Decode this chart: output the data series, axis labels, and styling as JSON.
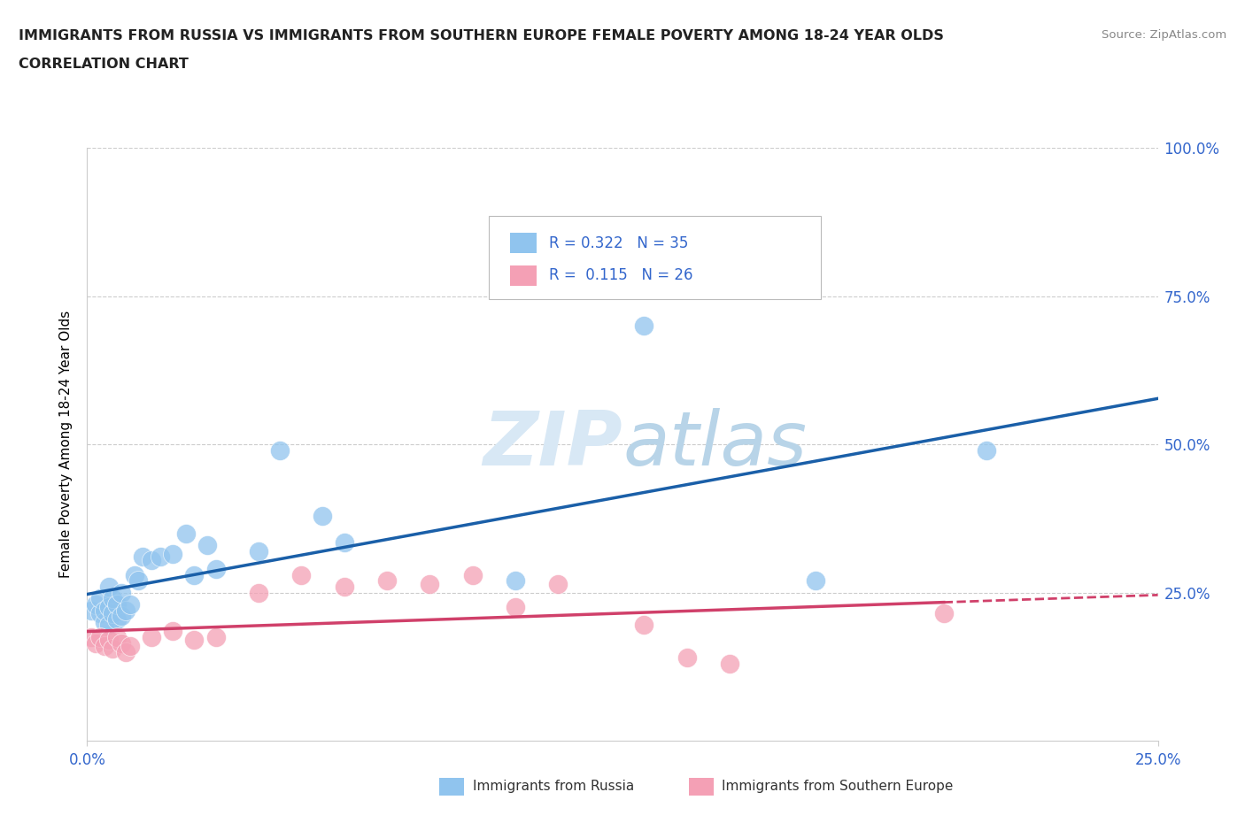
{
  "title_line1": "IMMIGRANTS FROM RUSSIA VS IMMIGRANTS FROM SOUTHERN EUROPE FEMALE POVERTY AMONG 18-24 YEAR OLDS",
  "title_line2": "CORRELATION CHART",
  "source_text": "Source: ZipAtlas.com",
  "ylabel": "Female Poverty Among 18-24 Year Olds",
  "xlim": [
    0.0,
    0.25
  ],
  "ylim": [
    0.0,
    1.0
  ],
  "ytick_positions": [
    0.25,
    0.5,
    0.75,
    1.0
  ],
  "ytick_labels": [
    "25.0%",
    "50.0%",
    "75.0%",
    "100.0%"
  ],
  "xtick_positions": [
    0.0,
    0.25
  ],
  "xtick_labels": [
    "0.0%",
    "25.0%"
  ],
  "color_russia": "#90C4EE",
  "color_south_europe": "#F4A0B5",
  "color_line_russia": "#1A5FA8",
  "color_line_se": "#D0406A",
  "watermark_zip": "ZIP",
  "watermark_atlas": "atlas",
  "background_color": "#FFFFFF",
  "grid_color": "#CCCCCC",
  "russia_x": [
    0.001,
    0.002,
    0.003,
    0.003,
    0.004,
    0.004,
    0.005,
    0.005,
    0.005,
    0.006,
    0.006,
    0.007,
    0.007,
    0.008,
    0.008,
    0.009,
    0.01,
    0.011,
    0.012,
    0.013,
    0.015,
    0.017,
    0.02,
    0.023,
    0.025,
    0.028,
    0.03,
    0.04,
    0.045,
    0.055,
    0.06,
    0.1,
    0.13,
    0.17,
    0.21
  ],
  "russia_y": [
    0.22,
    0.23,
    0.215,
    0.24,
    0.2,
    0.22,
    0.195,
    0.225,
    0.26,
    0.215,
    0.24,
    0.205,
    0.23,
    0.21,
    0.25,
    0.22,
    0.23,
    0.28,
    0.27,
    0.31,
    0.305,
    0.31,
    0.315,
    0.35,
    0.28,
    0.33,
    0.29,
    0.32,
    0.49,
    0.38,
    0.335,
    0.27,
    0.7,
    0.27,
    0.49
  ],
  "se_x": [
    0.001,
    0.002,
    0.003,
    0.004,
    0.005,
    0.006,
    0.007,
    0.008,
    0.009,
    0.01,
    0.015,
    0.02,
    0.025,
    0.03,
    0.04,
    0.05,
    0.06,
    0.07,
    0.08,
    0.09,
    0.1,
    0.11,
    0.13,
    0.14,
    0.15,
    0.2
  ],
  "se_y": [
    0.175,
    0.165,
    0.175,
    0.16,
    0.17,
    0.155,
    0.175,
    0.165,
    0.15,
    0.16,
    0.175,
    0.185,
    0.17,
    0.175,
    0.25,
    0.28,
    0.26,
    0.27,
    0.265,
    0.28,
    0.225,
    0.265,
    0.195,
    0.14,
    0.13,
    0.215
  ]
}
